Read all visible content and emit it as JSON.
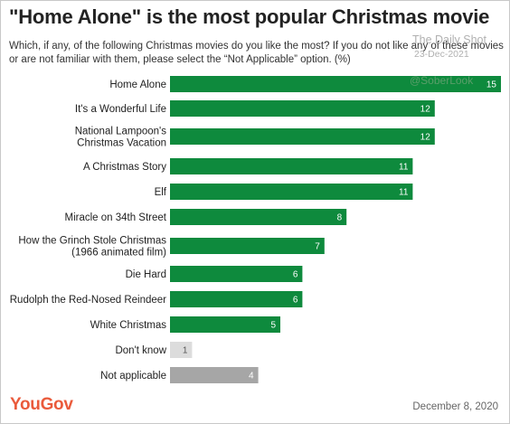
{
  "header": {
    "title": "\"Home Alone\" is the most popular Christmas movie",
    "subtitle": "Which, if any, of the following Christmas movies do you like the most? If you do not like any of these movies or are not familiar with them, please select the “Not Applicable” option. (%)"
  },
  "watermark": {
    "source": "The Daily Shot",
    "date": "23-Dec-2021",
    "handle": "@SoberLook"
  },
  "footer": {
    "brand": "YouGov",
    "date": "December 8, 2020"
  },
  "colors": {
    "primary_bar": "#0e8a3d",
    "dont_know_bar": "#dcdcdc",
    "not_applicable_bar": "#a6a6a6",
    "brand": "#ea5b3c"
  },
  "chart_data": {
    "type": "bar",
    "orientation": "horizontal",
    "categories": [
      [
        "Home Alone"
      ],
      [
        "It's a Wonderful Life"
      ],
      [
        "National Lampoon's",
        "Christmas Vacation"
      ],
      [
        "A Christmas Story"
      ],
      [
        "Elf"
      ],
      [
        "Miracle on 34th Street"
      ],
      [
        "How the Grinch Stole Christmas",
        "(1966 animated film)"
      ],
      [
        "Die Hard"
      ],
      [
        "Rudolph the Red-Nosed Reindeer"
      ],
      [
        "White Christmas"
      ],
      [
        "Don't know"
      ],
      [
        "Not applicable"
      ]
    ],
    "values": [
      15,
      12,
      12,
      11,
      11,
      8,
      7,
      6,
      6,
      5,
      1,
      4
    ],
    "bar_styles": [
      "primary",
      "primary",
      "primary",
      "primary",
      "primary",
      "primary",
      "primary",
      "primary",
      "primary",
      "primary",
      "dont_know",
      "not_applicable"
    ],
    "xlim": [
      0,
      15
    ],
    "unit": "%",
    "grid": false,
    "legend": "none"
  }
}
